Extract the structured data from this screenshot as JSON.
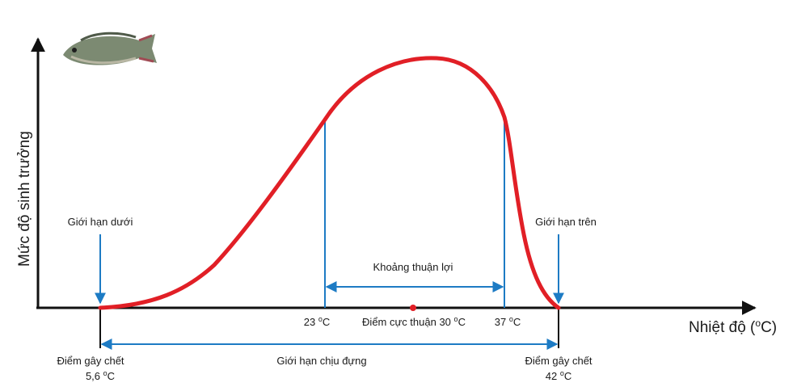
{
  "axis": {
    "y_label": "Mức độ sinh trưởng",
    "x_label": "Nhiệt độ (",
    "x_label_sup": "o",
    "x_label_end": "C)"
  },
  "labels": {
    "lower_limit": "Giới hạn dưới",
    "upper_limit": "Giới hạn trên",
    "favorable_range": "Khoảng thuận lợi",
    "tolerance_limit": "Giới hạn chịu đựng",
    "death_point_left_title": "Điểm gây chết",
    "death_point_left_value": "5,6",
    "death_point_right_title": "Điểm gây chết",
    "death_point_right_value": "42",
    "t23_value": "23",
    "t37_value": "37",
    "optimum_text": "Điểm cực thuận 30",
    "deg_sup": "o",
    "unit_c": "C"
  },
  "colors": {
    "curve": "#e11f26",
    "guides": "#1d7bc4",
    "axis": "#111111",
    "optimum_dot": "#e11f26"
  },
  "icons": {
    "fish": "fish-icon"
  }
}
